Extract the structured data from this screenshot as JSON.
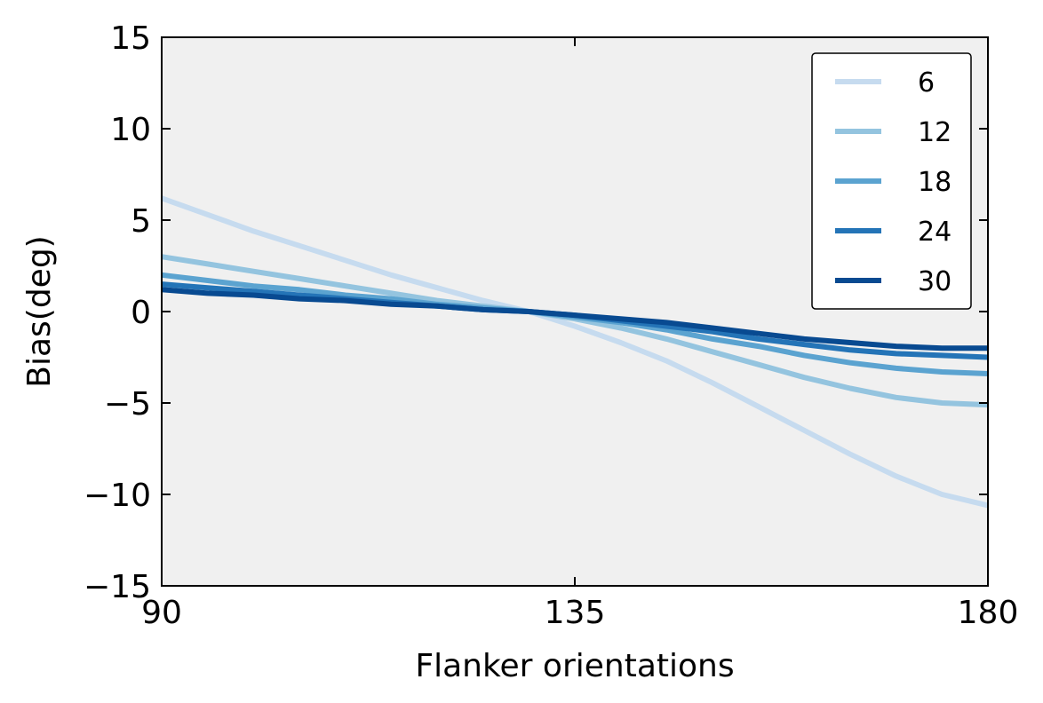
{
  "chart_data": {
    "type": "line",
    "xlabel": "Flanker orientations",
    "ylabel": "Bias(deg)",
    "xlim": [
      90,
      180
    ],
    "ylim": [
      -15,
      15
    ],
    "xticks": [
      90,
      135,
      180
    ],
    "yticks": [
      -15,
      -10,
      -5,
      0,
      5,
      10,
      15
    ],
    "xtick_labels": [
      "90",
      "135",
      "180"
    ],
    "ytick_labels": [
      "−15",
      "−10",
      "−5",
      "0",
      "5",
      "10",
      "15"
    ],
    "grid": false,
    "legend_position": "top-right",
    "background_color": "#f0f0f0",
    "x": [
      90,
      95,
      100,
      105,
      110,
      115,
      120,
      125,
      130,
      135,
      140,
      145,
      150,
      155,
      160,
      165,
      170,
      175,
      180
    ],
    "series": [
      {
        "name": "6",
        "color": "#c6dbef",
        "values": [
          6.2,
          5.3,
          4.4,
          3.6,
          2.8,
          2.0,
          1.3,
          0.6,
          0.0,
          -0.8,
          -1.7,
          -2.7,
          -3.9,
          -5.2,
          -6.5,
          -7.8,
          -9.0,
          -10.0,
          -10.6
        ]
      },
      {
        "name": "12",
        "color": "#94c4df",
        "values": [
          3.0,
          2.6,
          2.2,
          1.8,
          1.4,
          1.0,
          0.6,
          0.3,
          0.0,
          -0.4,
          -0.9,
          -1.5,
          -2.2,
          -2.9,
          -3.6,
          -4.2,
          -4.7,
          -5.0,
          -5.1
        ]
      },
      {
        "name": "18",
        "color": "#5ba3d0",
        "values": [
          2.0,
          1.7,
          1.4,
          1.2,
          0.9,
          0.7,
          0.4,
          0.2,
          0.0,
          -0.3,
          -0.6,
          -1.0,
          -1.5,
          -1.9,
          -2.4,
          -2.8,
          -3.1,
          -3.3,
          -3.4
        ]
      },
      {
        "name": "24",
        "color": "#2474b7",
        "values": [
          1.5,
          1.3,
          1.1,
          0.9,
          0.7,
          0.5,
          0.3,
          0.1,
          0.0,
          -0.2,
          -0.5,
          -0.8,
          -1.1,
          -1.5,
          -1.8,
          -2.1,
          -2.3,
          -2.4,
          -2.5
        ]
      },
      {
        "name": "30",
        "color": "#084a91",
        "values": [
          1.2,
          1.0,
          0.9,
          0.7,
          0.6,
          0.4,
          0.3,
          0.1,
          0.0,
          -0.2,
          -0.4,
          -0.6,
          -0.9,
          -1.2,
          -1.5,
          -1.7,
          -1.9,
          -2.0,
          -2.0
        ]
      }
    ]
  }
}
